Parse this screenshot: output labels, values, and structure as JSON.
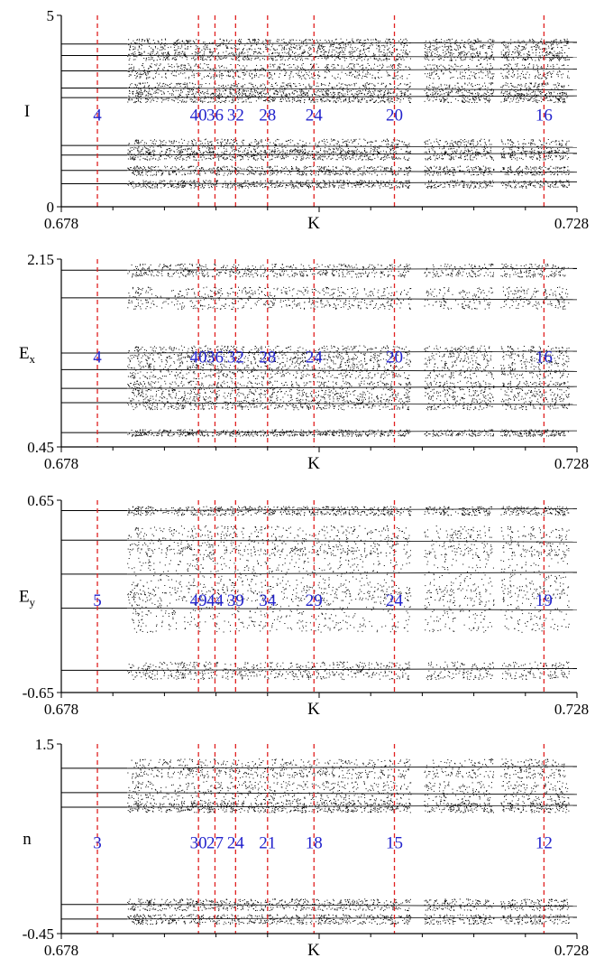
{
  "chart_data": [
    {
      "type": "scatter",
      "ylabel": "I",
      "ylabel_sub": "",
      "xlabel": "K",
      "xlim": [
        0.678,
        0.728
      ],
      "ylim": [
        0,
        5
      ],
      "x_tick_labels": [
        "0.678",
        "K",
        "0.728"
      ],
      "y_tick_labels": [
        "5",
        "0"
      ],
      "markers": [
        {
          "k": 0.6815,
          "label": "4"
        },
        {
          "k": 0.6913,
          "label": "40"
        },
        {
          "k": 0.6929,
          "label": "36"
        },
        {
          "k": 0.6949,
          "label": "32"
        },
        {
          "k": 0.698,
          "label": "28"
        },
        {
          "k": 0.7025,
          "label": "24"
        },
        {
          "k": 0.7103,
          "label": "20"
        },
        {
          "k": 0.7248,
          "label": "16"
        }
      ],
      "chaos_start": 0.6844,
      "branches": [
        {
          "y": 4.25,
          "spread": 0.15
        },
        {
          "y": 3.95,
          "spread": 0.12
        },
        {
          "y": 3.55,
          "spread": 0.2
        },
        {
          "y": 3.1,
          "spread": 0.15
        },
        {
          "y": 2.85,
          "spread": 0.12
        },
        {
          "y": 1.6,
          "spread": 0.18
        },
        {
          "y": 1.35,
          "spread": 0.12
        },
        {
          "y": 0.95,
          "spread": 0.12
        },
        {
          "y": 0.6,
          "spread": 0.1
        }
      ]
    },
    {
      "type": "scatter",
      "ylabel": "E",
      "ylabel_sub": "x",
      "xlabel": "K",
      "xlim": [
        0.678,
        0.728
      ],
      "ylim": [
        0.45,
        2.15
      ],
      "x_tick_labels": [
        "0.678",
        "K",
        "0.728"
      ],
      "y_tick_labels": [
        "2.15",
        "0.45"
      ],
      "markers": [
        {
          "k": 0.6815,
          "label": "4"
        },
        {
          "k": 0.6913,
          "label": "40"
        },
        {
          "k": 0.6929,
          "label": "36"
        },
        {
          "k": 0.6949,
          "label": "32"
        },
        {
          "k": 0.698,
          "label": "28"
        },
        {
          "k": 0.7025,
          "label": "24"
        },
        {
          "k": 0.7103,
          "label": "20"
        },
        {
          "k": 0.7248,
          "label": "16"
        }
      ],
      "chaos_start": 0.6844,
      "branches": [
        {
          "y": 2.05,
          "spread": 0.06
        },
        {
          "y": 1.8,
          "spread": 0.1
        },
        {
          "y": 1.3,
          "spread": 0.07
        },
        {
          "y": 1.15,
          "spread": 0.08
        },
        {
          "y": 0.98,
          "spread": 0.07
        },
        {
          "y": 0.85,
          "spread": 0.06
        },
        {
          "y": 0.58,
          "spread": 0.03
        }
      ]
    },
    {
      "type": "scatter",
      "ylabel": "E",
      "ylabel_sub": "y",
      "xlabel": "K",
      "xlim": [
        0.678,
        0.728
      ],
      "ylim": [
        -0.65,
        0.65
      ],
      "x_tick_labels": [
        "0.678",
        "K",
        "0.728"
      ],
      "y_tick_labels": [
        "0.65",
        "-0.65"
      ],
      "markers": [
        {
          "k": 0.6815,
          "label": "5"
        },
        {
          "k": 0.6913,
          "label": "49"
        },
        {
          "k": 0.6929,
          "label": "44"
        },
        {
          "k": 0.6949,
          "label": "39"
        },
        {
          "k": 0.698,
          "label": "34"
        },
        {
          "k": 0.7025,
          "label": "29"
        },
        {
          "k": 0.7103,
          "label": "24"
        },
        {
          "k": 0.7248,
          "label": "19"
        }
      ],
      "chaos_start": 0.6844,
      "branches": [
        {
          "y": 0.58,
          "spread": 0.03
        },
        {
          "y": 0.38,
          "spread": 0.1
        },
        {
          "y": 0.15,
          "spread": 0.18
        },
        {
          "y": -0.08,
          "spread": 0.16
        },
        {
          "y": -0.5,
          "spread": 0.06
        }
      ]
    },
    {
      "type": "scatter",
      "ylabel": "n",
      "ylabel_sub": "",
      "xlabel": "K",
      "xlim": [
        0.678,
        0.728
      ],
      "ylim": [
        -0.45,
        1.5
      ],
      "x_tick_labels": [
        "0.678",
        "K",
        "0.728"
      ],
      "y_tick_labels": [
        "1.5",
        "-0.45"
      ],
      "markers": [
        {
          "k": 0.6815,
          "label": "3"
        },
        {
          "k": 0.6913,
          "label": "30"
        },
        {
          "k": 0.6929,
          "label": "27"
        },
        {
          "k": 0.6949,
          "label": "24"
        },
        {
          "k": 0.698,
          "label": "21"
        },
        {
          "k": 0.7025,
          "label": "18"
        },
        {
          "k": 0.7103,
          "label": "15"
        },
        {
          "k": 0.7248,
          "label": "12"
        }
      ],
      "chaos_start": 0.6844,
      "branches": [
        {
          "y": 1.25,
          "spread": 0.1
        },
        {
          "y": 1.0,
          "spread": 0.12
        },
        {
          "y": 0.85,
          "spread": 0.05
        },
        {
          "y": -0.15,
          "spread": 0.06
        },
        {
          "y": -0.3,
          "spread": 0.05
        }
      ]
    }
  ],
  "colors": {
    "marker_line": "#e02020",
    "marker_label": "#2222cc",
    "points": "#000000",
    "axis": "#000000"
  }
}
